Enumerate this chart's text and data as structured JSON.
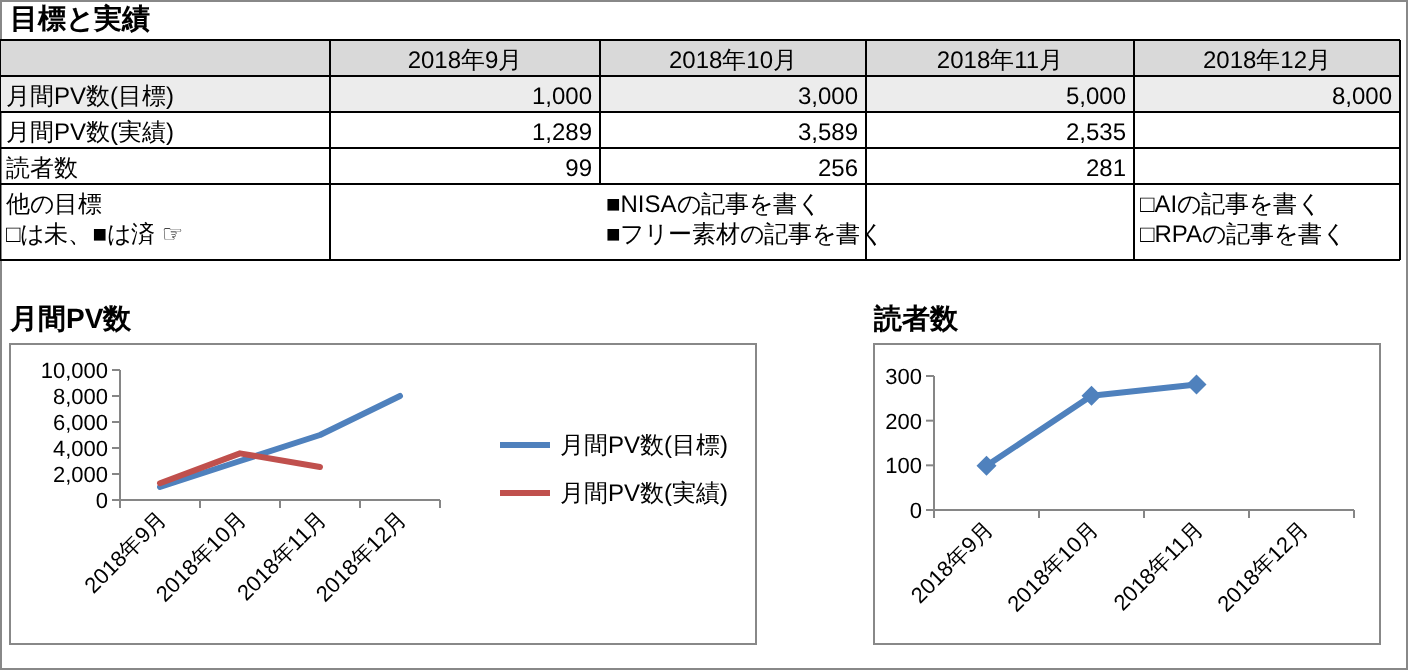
{
  "chart_data": [
    {
      "type": "other",
      "title": "目標と実績",
      "categories": [
        "2018年9月",
        "2018年10月",
        "2018年11月",
        "2018年12月"
      ],
      "y_categories": [
        "月間PV数(目標)",
        "月間PV数(実績)",
        "読者数",
        "他の目標\n□は未、■は済 ☞"
      ],
      "cell_labels": [
        [
          "1,000",
          "3,000",
          "5,000",
          "8,000"
        ],
        [
          "1,289",
          "3,589",
          "2,535",
          null
        ],
        [
          "99",
          "256",
          "281",
          null
        ],
        [
          null,
          "■NISAの記事を書く\n■フリー素材の記事を書く",
          null,
          "□AIの記事を書く\n□RPAの記事を書く"
        ]
      ]
    },
    {
      "type": "line",
      "title": "月間PV数",
      "categories": [
        "2018年9月",
        "2018年10月",
        "2018年11月",
        "2018年12月"
      ],
      "series": [
        {
          "name": "月間PV数(目標)",
          "color": "#4f81bd",
          "values": [
            1000,
            3000,
            5000,
            8000
          ]
        },
        {
          "name": "月間PV数(実績)",
          "color": "#c0504d",
          "values": [
            1289,
            3589,
            2535,
            null
          ]
        }
      ],
      "ylim": [
        0,
        10000
      ],
      "yticks": [
        0,
        {
          "value": 2000,
          "label": "2,000"
        },
        {
          "value": 4000,
          "label": "4,000"
        },
        {
          "value": 6000,
          "label": "6,000"
        },
        {
          "value": 8000,
          "label": "8,000"
        },
        {
          "value": 10000,
          "label": "10,000"
        }
      ],
      "legend": "right",
      "grid": false
    },
    {
      "type": "line",
      "title": "読者数",
      "categories": [
        "2018年9月",
        "2018年10月",
        "2018年11月",
        "2018年12月"
      ],
      "series": [
        {
          "color": "#4f81bd",
          "values": [
            99,
            256,
            281,
            null
          ]
        }
      ],
      "ylim": [
        0,
        300
      ],
      "yticks": [
        0,
        100,
        200,
        300
      ],
      "marker": "diamond",
      "grid": false,
      "legend": false
    }
  ]
}
